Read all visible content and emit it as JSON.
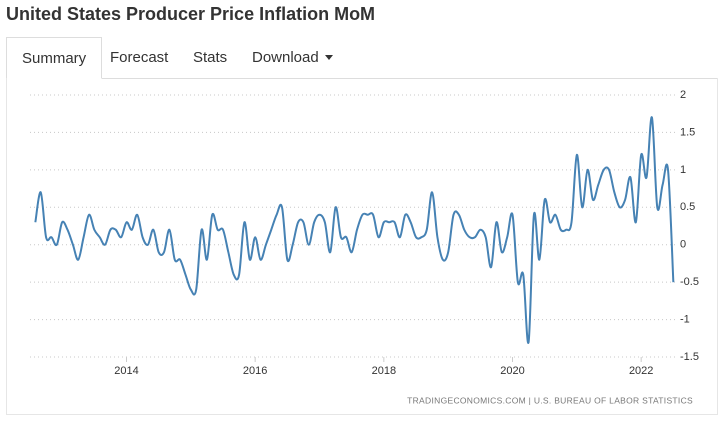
{
  "header": {
    "title": "United States Producer Price Inflation MoM"
  },
  "tabs": [
    "Summary",
    "Forecast",
    "Stats",
    "Download"
  ],
  "chart_data": {
    "type": "line",
    "color": "#4682b4",
    "x": [
      2012.583,
      2012.667,
      2012.75,
      2012.833,
      2012.917,
      2013.0,
      2013.083,
      2013.167,
      2013.25,
      2013.333,
      2013.417,
      2013.5,
      2013.583,
      2013.667,
      2013.75,
      2013.833,
      2013.917,
      2014.0,
      2014.083,
      2014.167,
      2014.25,
      2014.333,
      2014.417,
      2014.5,
      2014.583,
      2014.667,
      2014.75,
      2014.833,
      2014.917,
      2015.0,
      2015.083,
      2015.167,
      2015.25,
      2015.333,
      2015.417,
      2015.5,
      2015.583,
      2015.667,
      2015.75,
      2015.833,
      2015.917,
      2016.0,
      2016.083,
      2016.167,
      2016.25,
      2016.333,
      2016.417,
      2016.5,
      2016.583,
      2016.667,
      2016.75,
      2016.833,
      2016.917,
      2017.0,
      2017.083,
      2017.167,
      2017.25,
      2017.333,
      2017.417,
      2017.5,
      2017.583,
      2017.667,
      2017.75,
      2017.833,
      2017.917,
      2018.0,
      2018.083,
      2018.167,
      2018.25,
      2018.333,
      2018.417,
      2018.5,
      2018.583,
      2018.667,
      2018.75,
      2018.833,
      2018.917,
      2019.0,
      2019.083,
      2019.167,
      2019.25,
      2019.333,
      2019.417,
      2019.5,
      2019.583,
      2019.667,
      2019.75,
      2019.833,
      2019.917,
      2020.0,
      2020.083,
      2020.167,
      2020.25,
      2020.333,
      2020.417,
      2020.5,
      2020.583,
      2020.667,
      2020.75,
      2020.833,
      2020.917,
      2021.0,
      2021.083,
      2021.167,
      2021.25,
      2021.333,
      2021.417,
      2021.5,
      2021.583,
      2021.667,
      2021.75,
      2021.833,
      2021.917,
      2022.0,
      2022.083,
      2022.167,
      2022.25,
      2022.333,
      2022.417,
      2022.5
    ],
    "values": [
      0.3,
      0.7,
      0.1,
      0.1,
      0.0,
      0.3,
      0.2,
      0.0,
      -0.2,
      0.1,
      0.4,
      0.2,
      0.1,
      0.0,
      0.2,
      0.2,
      0.1,
      0.3,
      0.2,
      0.4,
      0.1,
      0.0,
      0.2,
      -0.1,
      -0.1,
      0.2,
      -0.2,
      -0.2,
      -0.4,
      -0.6,
      -0.6,
      0.2,
      -0.2,
      0.4,
      0.2,
      0.2,
      -0.1,
      -0.4,
      -0.4,
      0.3,
      -0.2,
      0.1,
      -0.2,
      0.0,
      0.2,
      0.4,
      0.5,
      -0.2,
      0.0,
      0.3,
      0.3,
      0.0,
      0.3,
      0.4,
      0.3,
      -0.1,
      0.5,
      0.1,
      0.1,
      -0.1,
      0.2,
      0.4,
      0.4,
      0.4,
      0.1,
      0.3,
      0.3,
      0.3,
      0.1,
      0.4,
      0.3,
      0.1,
      0.1,
      0.2,
      0.7,
      0.1,
      -0.2,
      -0.1,
      0.4,
      0.4,
      0.2,
      0.1,
      0.1,
      0.2,
      0.1,
      -0.3,
      0.3,
      -0.1,
      0.1,
      0.4,
      -0.5,
      -0.4,
      -1.3,
      0.4,
      -0.2,
      0.6,
      0.3,
      0.4,
      0.2,
      0.2,
      0.3,
      1.2,
      0.5,
      1.0,
      0.6,
      0.8,
      1.0,
      1.0,
      0.7,
      0.5,
      0.6,
      0.9,
      0.3,
      1.2,
      0.9,
      1.7,
      0.5,
      0.8,
      1.0,
      -0.5
    ],
    "xlim": [
      2012.5,
      2022.65
    ],
    "xticks": [
      2014,
      2016,
      2018,
      2020,
      2022
    ],
    "ylim": [
      -1.5,
      2
    ],
    "yticks": [
      2,
      1.5,
      1,
      0.5,
      0,
      -0.5,
      -1,
      -1.5
    ],
    "grid": true,
    "source": "TRADINGECONOMICS.COM  |  U.S. BUREAU OF LABOR STATISTICS"
  }
}
